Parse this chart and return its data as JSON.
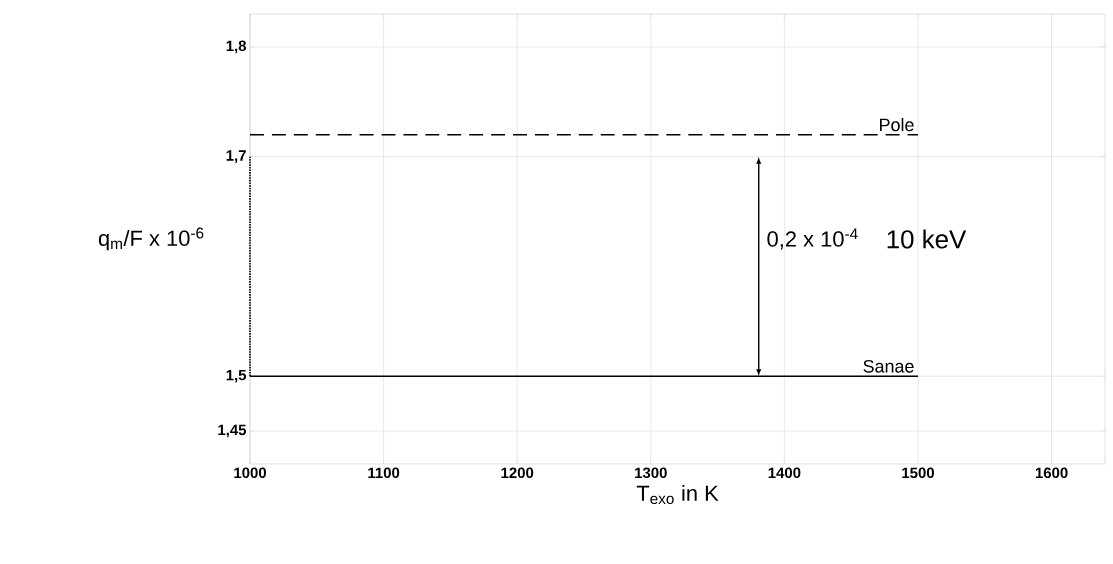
{
  "chart_data": {
    "type": "line",
    "xlabel": "T$_{exo}$ in K",
    "ylabel": "q$_{m}$/F x 10$^{-6}$",
    "xlim": [
      1000,
      1640
    ],
    "ylim": [
      1.42,
      1.83
    ],
    "xticks": [
      1000,
      1100,
      1200,
      1300,
      1400,
      1500,
      1600
    ],
    "yticks": [
      {
        "value": 1.45,
        "label": "1,45"
      },
      {
        "value": 1.5,
        "label": "1,5"
      },
      {
        "value": 1.7,
        "label": "1,7"
      },
      {
        "value": 1.8,
        "label": "1,8"
      }
    ],
    "grid": true,
    "series": [
      {
        "name": "Pole",
        "color": "#000000",
        "line_style": "dashed",
        "values": [
          1.72,
          1.72
        ]
      },
      {
        "name": "Sanae",
        "color": "#000000",
        "line_style": "solid",
        "values": [
          1.5,
          1.5
        ]
      },
      {
        "color": "#000000",
        "line_style": "dotted",
        "x": [
          1000,
          1000
        ],
        "values": [
          1.5,
          1.7
        ]
      }
    ],
    "x": [
      1000,
      1500
    ],
    "annotations": [
      "0,2 x 10$^{-4}$",
      "10 keV"
    ]
  }
}
